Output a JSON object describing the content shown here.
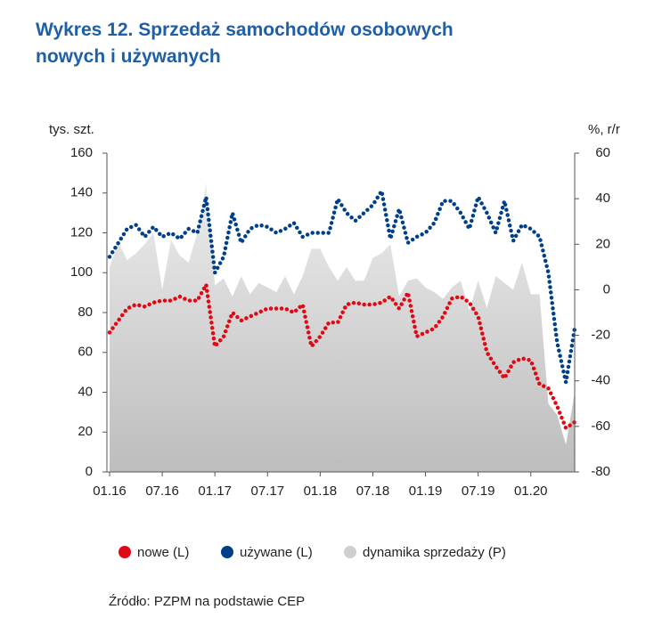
{
  "chart_data": {
    "type": "line",
    "title": "Wykres 12. Sprzedaż samochodów osobowych nowych i używanych",
    "y_label": "tys. szt.",
    "y2_label": "%, r/r",
    "source": "Źródło: PZPM na podstawie CEP",
    "categories": [
      "01.16",
      null,
      null,
      null,
      null,
      null,
      "07.16",
      null,
      null,
      null,
      null,
      null,
      "01.17",
      null,
      null,
      null,
      null,
      null,
      "07.17",
      null,
      null,
      null,
      null,
      null,
      "01.18",
      null,
      null,
      null,
      null,
      null,
      "07.18",
      null,
      null,
      null,
      null,
      null,
      "01.19",
      null,
      null,
      null,
      null,
      null,
      "07.19",
      null,
      null,
      null,
      null,
      null,
      "01.20",
      null,
      null,
      null,
      null,
      null
    ],
    "series": [
      {
        "name": "dynamika sprzedaży (P)",
        "type": "area",
        "axis": "y2",
        "color": "#cfcfcf",
        "values": [
          10,
          21,
          13,
          16,
          20,
          25,
          0,
          22,
          15,
          12,
          25,
          47,
          2,
          5,
          -3,
          6,
          -2,
          3,
          1,
          -1,
          6,
          -2,
          6,
          18,
          18,
          10,
          4,
          10,
          4,
          4,
          14,
          16,
          20,
          -3,
          4,
          5,
          1,
          -1,
          -4,
          1,
          4,
          -9,
          4,
          -8,
          6,
          3,
          0,
          12,
          -2,
          -2,
          -50,
          -55,
          -68,
          -45
        ]
      },
      {
        "name": "nowe (L)",
        "color": "#e30613",
        "values": [
          70,
          76,
          82,
          84,
          83,
          85,
          86,
          86,
          88,
          86,
          86,
          94,
          63,
          68,
          80,
          76,
          78,
          80,
          82,
          82,
          82,
          80,
          84,
          63,
          68,
          75,
          75,
          84,
          85,
          84,
          84,
          85,
          88,
          82,
          90,
          68,
          70,
          72,
          78,
          87,
          88,
          85,
          78,
          60,
          53,
          47,
          55,
          57,
          56,
          44,
          42,
          33,
          22,
          25
        ]
      },
      {
        "name": "używane (L)",
        "color": "#003f8a",
        "values": [
          108,
          115,
          122,
          124,
          118,
          123,
          118,
          120,
          117,
          122,
          120,
          138,
          100,
          108,
          130,
          115,
          122,
          124,
          123,
          120,
          122,
          125,
          118,
          120,
          120,
          120,
          137,
          130,
          126,
          130,
          134,
          141,
          117,
          132,
          115,
          118,
          120,
          125,
          136,
          136,
          130,
          122,
          138,
          130,
          120,
          136,
          116,
          124,
          122,
          118,
          100,
          65,
          45,
          72
        ]
      }
    ],
    "ylim": [
      0,
      160
    ],
    "yticks": [
      0,
      20,
      40,
      60,
      80,
      100,
      120,
      140,
      160
    ],
    "y2lim": [
      -80,
      60
    ],
    "y2ticks": [
      -80,
      -60,
      -40,
      -20,
      0,
      20,
      40,
      60
    ]
  }
}
